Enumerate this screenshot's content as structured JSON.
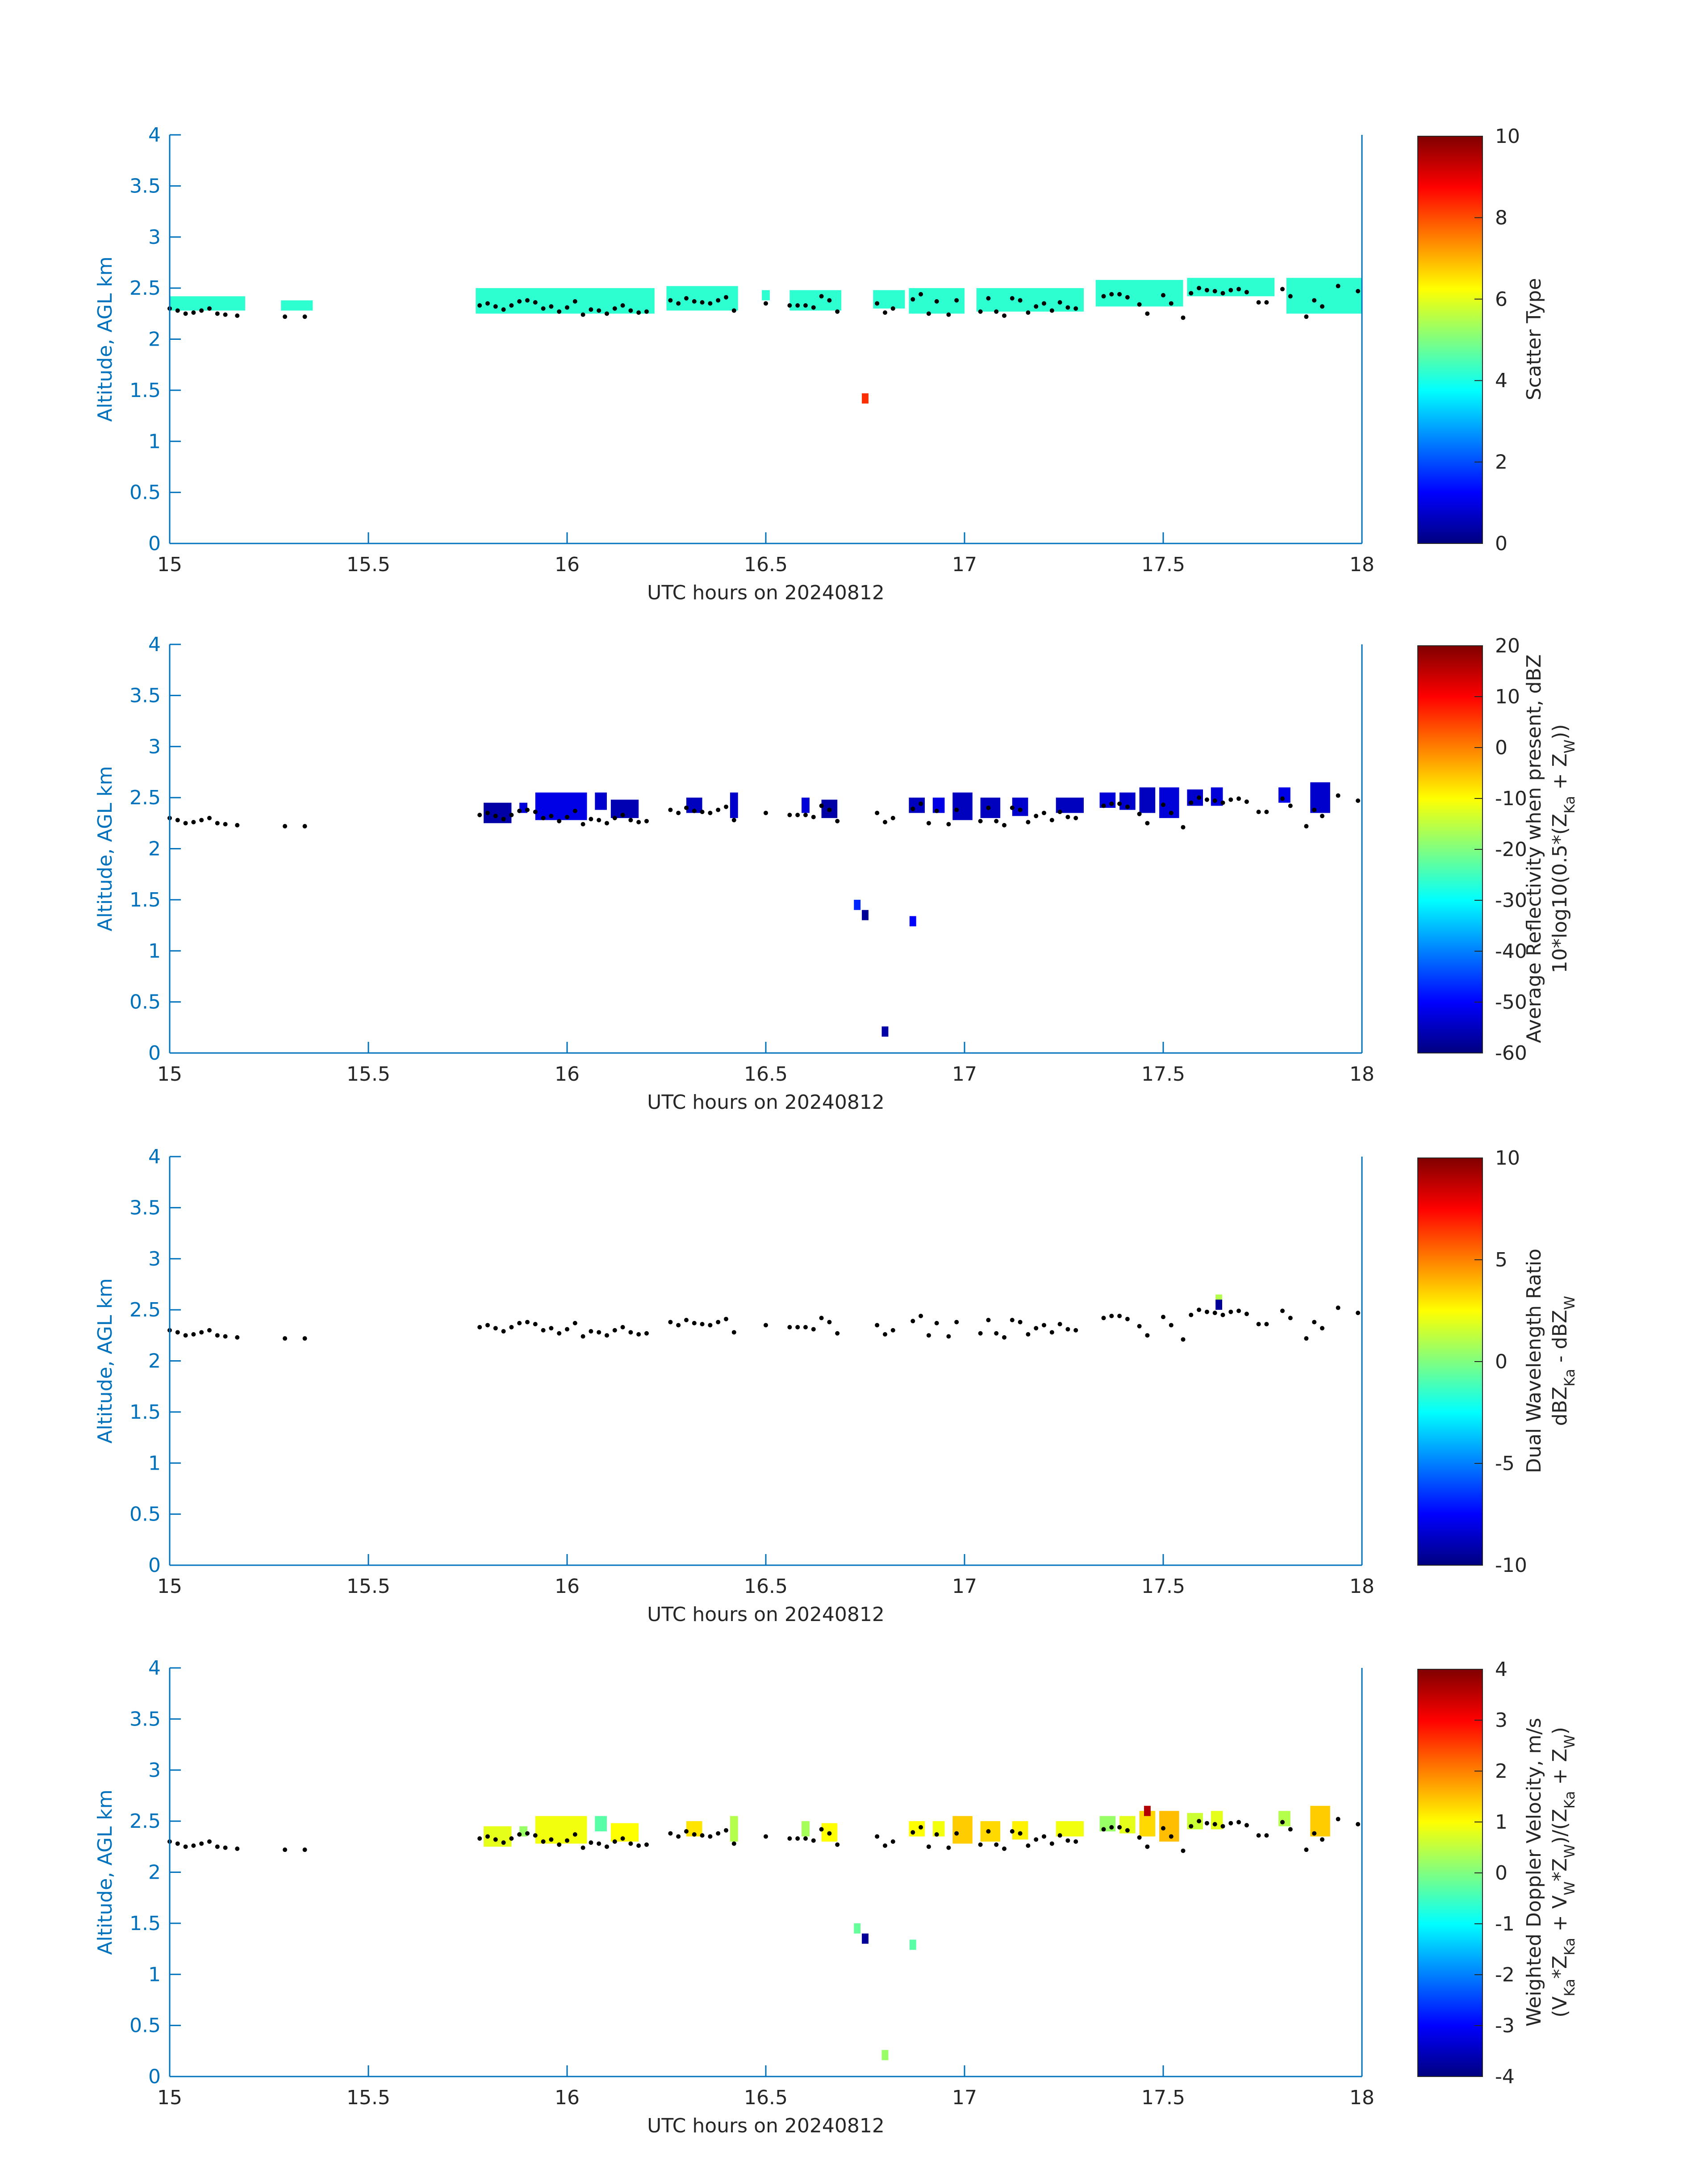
{
  "x_axis": {
    "label": "UTC hours on 20240812",
    "range": [
      15,
      18
    ],
    "ticks": [
      15,
      15.5,
      16,
      16.5,
      17,
      17.5,
      18
    ],
    "tick_labels": [
      "15",
      "15.5",
      "16",
      "16.5",
      "17",
      "17.5",
      "18"
    ]
  },
  "y_axis": {
    "label": "Altitude, AGL km",
    "range": [
      0,
      4
    ],
    "ticks": [
      0,
      0.5,
      1,
      1.5,
      2,
      2.5,
      3,
      3.5,
      4
    ],
    "tick_labels": [
      "0",
      "0.5",
      "1",
      "1.5",
      "2",
      "2.5",
      "3",
      "3.5",
      "4"
    ]
  },
  "axis_color": "#0072BD",
  "colormap": "jet",
  "cloud_base_km": {
    "hours": [
      15.0,
      15.02,
      15.04,
      15.06,
      15.08,
      15.1,
      15.12,
      15.14,
      15.17,
      15.29,
      15.34,
      15.78,
      15.8,
      15.82,
      15.84,
      15.86,
      15.88,
      15.9,
      15.92,
      15.94,
      15.96,
      15.98,
      16.0,
      16.02,
      16.04,
      16.06,
      16.08,
      16.1,
      16.12,
      16.14,
      16.16,
      16.18,
      16.2,
      16.26,
      16.28,
      16.3,
      16.32,
      16.34,
      16.36,
      16.38,
      16.4,
      16.42,
      16.5,
      16.56,
      16.58,
      16.6,
      16.62,
      16.64,
      16.66,
      16.68,
      16.78,
      16.8,
      16.82,
      16.87,
      16.89,
      16.91,
      16.93,
      16.96,
      16.98,
      17.04,
      17.06,
      17.08,
      17.1,
      17.12,
      17.14,
      17.16,
      17.18,
      17.2,
      17.22,
      17.24,
      17.26,
      17.28,
      17.35,
      17.37,
      17.39,
      17.41,
      17.44,
      17.46,
      17.5,
      17.52,
      17.55,
      17.57,
      17.59,
      17.61,
      17.63,
      17.65,
      17.67,
      17.69,
      17.71,
      17.74,
      17.76,
      17.8,
      17.82,
      17.86,
      17.88,
      17.9,
      17.94,
      17.99
    ],
    "altitudes": [
      2.3,
      2.28,
      2.25,
      2.26,
      2.28,
      2.3,
      2.25,
      2.24,
      2.23,
      2.22,
      2.22,
      2.33,
      2.35,
      2.32,
      2.29,
      2.33,
      2.37,
      2.38,
      2.36,
      2.3,
      2.32,
      2.27,
      2.31,
      2.37,
      2.24,
      2.29,
      2.28,
      2.25,
      2.3,
      2.33,
      2.28,
      2.26,
      2.27,
      2.38,
      2.35,
      2.4,
      2.37,
      2.36,
      2.35,
      2.38,
      2.41,
      2.28,
      2.35,
      2.33,
      2.33,
      2.33,
      2.31,
      2.42,
      2.38,
      2.27,
      2.35,
      2.26,
      2.3,
      2.39,
      2.44,
      2.25,
      2.37,
      2.24,
      2.38,
      2.27,
      2.4,
      2.27,
      2.23,
      2.4,
      2.38,
      2.26,
      2.32,
      2.35,
      2.28,
      2.36,
      2.31,
      2.3,
      2.42,
      2.44,
      2.44,
      2.41,
      2.34,
      2.25,
      2.43,
      2.35,
      2.21,
      2.45,
      2.5,
      2.48,
      2.47,
      2.45,
      2.48,
      2.49,
      2.46,
      2.36,
      2.36,
      2.49,
      2.42,
      2.22,
      2.38,
      2.32,
      2.52,
      2.47
    ]
  },
  "panels": [
    {
      "colorbar_label_lines": [
        "Scatter Type"
      ],
      "colorbar_ticks": [
        0,
        2,
        4,
        6,
        8,
        10
      ],
      "colorbar_tick_labels": [
        "0",
        "2",
        "4",
        "6",
        "8",
        "10"
      ],
      "chart_data": {
        "type": "heatmap",
        "x_label": "UTC hours on 20240812",
        "y_label": "Altitude, AGL km",
        "clim": [
          0,
          10
        ],
        "value_label": "Scatter Type",
        "x_range": [
          15,
          18
        ],
        "y_range": [
          0,
          4
        ],
        "cell_size": {
          "hours": 0.0167,
          "km": 0.1
        },
        "segments": [
          {
            "x": [
              15.0,
              15.19
            ],
            "z": [
              2.28,
              2.42
            ],
            "value": 4.2
          },
          {
            "x": [
              15.28,
              15.36
            ],
            "z": [
              2.28,
              2.38
            ],
            "value": 4.2
          },
          {
            "x": [
              15.77,
              16.22
            ],
            "z": [
              2.25,
              2.5
            ],
            "value": 4.2
          },
          {
            "x": [
              16.25,
              16.43
            ],
            "z": [
              2.28,
              2.52
            ],
            "value": 4.2
          },
          {
            "x": [
              16.49,
              16.51
            ],
            "z": [
              2.38,
              2.48
            ],
            "value": 4.2
          },
          {
            "x": [
              16.56,
              16.69
            ],
            "z": [
              2.28,
              2.48
            ],
            "value": 4.2
          },
          {
            "x": [
              16.77,
              16.85
            ],
            "z": [
              2.3,
              2.48
            ],
            "value": 4.2
          },
          {
            "x": [
              16.86,
              17.0
            ],
            "z": [
              2.25,
              2.5
            ],
            "value": 4.2
          },
          {
            "x": [
              17.03,
              17.3
            ],
            "z": [
              2.27,
              2.5
            ],
            "value": 4.2
          },
          {
            "x": [
              17.33,
              17.55
            ],
            "z": [
              2.32,
              2.58
            ],
            "value": 4.2
          },
          {
            "x": [
              17.56,
              17.78
            ],
            "z": [
              2.42,
              2.6
            ],
            "value": 4.2
          },
          {
            "x": [
              17.81,
              18.0
            ],
            "z": [
              2.25,
              2.6
            ],
            "value": 4.2
          }
        ],
        "points": [
          {
            "x": 16.75,
            "z": 1.42,
            "value": 8.3
          }
        ]
      }
    },
    {
      "colorbar_label_lines": [
        "Average Reflectivity when present, dBZ",
        "10*log10(0.5*(Z_Ka + Z_W))"
      ],
      "colorbar_ticks": [
        -60,
        -50,
        -40,
        -30,
        -20,
        -10,
        0,
        10,
        20
      ],
      "colorbar_tick_labels": [
        "-60",
        "-50",
        "-40",
        "-30",
        "-20",
        "-10",
        "0",
        "10",
        "20"
      ],
      "chart_data": {
        "type": "heatmap",
        "x_label": "UTC hours on 20240812",
        "y_label": "Altitude, AGL km",
        "clim": [
          -60,
          20
        ],
        "value_label": "Average Reflectivity when present, dBZ",
        "x_range": [
          15,
          18
        ],
        "y_range": [
          0,
          4
        ],
        "cell_size": {
          "hours": 0.0167,
          "km": 0.1
        },
        "segments": [
          {
            "x": [
              15.79,
              15.86
            ],
            "z": [
              2.25,
              2.45
            ],
            "value": -57
          },
          {
            "x": [
              15.88,
              15.9
            ],
            "z": [
              2.35,
              2.45
            ],
            "value": -53
          },
          {
            "x": [
              15.92,
              16.05
            ],
            "z": [
              2.28,
              2.55
            ],
            "value": -52
          },
          {
            "x": [
              16.07,
              16.1
            ],
            "z": [
              2.38,
              2.55
            ],
            "value": -54
          },
          {
            "x": [
              16.11,
              16.18
            ],
            "z": [
              2.3,
              2.48
            ],
            "value": -56
          },
          {
            "x": [
              16.3,
              16.34
            ],
            "z": [
              2.35,
              2.5
            ],
            "value": -55
          },
          {
            "x": [
              16.41,
              16.43
            ],
            "z": [
              2.3,
              2.55
            ],
            "value": -54
          },
          {
            "x": [
              16.59,
              16.61
            ],
            "z": [
              2.35,
              2.5
            ],
            "value": -53
          },
          {
            "x": [
              16.64,
              16.68
            ],
            "z": [
              2.3,
              2.48
            ],
            "value": -57
          },
          {
            "x": [
              16.86,
              16.9
            ],
            "z": [
              2.35,
              2.5
            ],
            "value": -55
          },
          {
            "x": [
              16.92,
              16.95
            ],
            "z": [
              2.35,
              2.5
            ],
            "value": -52
          },
          {
            "x": [
              16.97,
              17.02
            ],
            "z": [
              2.28,
              2.55
            ],
            "value": -55
          },
          {
            "x": [
              17.04,
              17.09
            ],
            "z": [
              2.3,
              2.5
            ],
            "value": -55
          },
          {
            "x": [
              17.12,
              17.16
            ],
            "z": [
              2.32,
              2.5
            ],
            "value": -54
          },
          {
            "x": [
              17.23,
              17.3
            ],
            "z": [
              2.35,
              2.5
            ],
            "value": -55
          },
          {
            "x": [
              17.34,
              17.38
            ],
            "z": [
              2.4,
              2.55
            ],
            "value": -53
          },
          {
            "x": [
              17.39,
              17.43
            ],
            "z": [
              2.38,
              2.55
            ],
            "value": -54
          },
          {
            "x": [
              17.44,
              17.48
            ],
            "z": [
              2.35,
              2.6
            ],
            "value": -55
          },
          {
            "x": [
              17.49,
              17.54
            ],
            "z": [
              2.3,
              2.6
            ],
            "value": -53
          },
          {
            "x": [
              17.56,
              17.6
            ],
            "z": [
              2.42,
              2.58
            ],
            "value": -54
          },
          {
            "x": [
              17.62,
              17.65
            ],
            "z": [
              2.42,
              2.6
            ],
            "value": -53
          },
          {
            "x": [
              17.79,
              17.82
            ],
            "z": [
              2.45,
              2.6
            ],
            "value": -52
          },
          {
            "x": [
              17.87,
              17.92
            ],
            "z": [
              2.35,
              2.65
            ],
            "value": -54
          }
        ],
        "points": [
          {
            "x": 16.73,
            "z": 1.45,
            "value": -47
          },
          {
            "x": 16.75,
            "z": 1.35,
            "value": -58
          },
          {
            "x": 16.87,
            "z": 1.29,
            "value": -50
          },
          {
            "x": 16.8,
            "z": 0.21,
            "value": -57
          }
        ]
      }
    },
    {
      "colorbar_label_lines": [
        "Dual Wavelength Ratio",
        "dBZ_Ka - dBZ_W"
      ],
      "colorbar_ticks": [
        -10,
        -5,
        0,
        5,
        10
      ],
      "colorbar_tick_labels": [
        "-10",
        "-5",
        "0",
        "5",
        "10"
      ],
      "chart_data": {
        "type": "heatmap",
        "x_label": "UTC hours on 20240812",
        "y_label": "Altitude, AGL km",
        "clim": [
          -10,
          10
        ],
        "value_label": "Dual Wavelength Ratio",
        "x_range": [
          15,
          18
        ],
        "y_range": [
          0,
          4
        ],
        "cell_size": {
          "hours": 0.0167,
          "km": 0.1
        },
        "segments": [],
        "points": [
          {
            "x": 17.64,
            "z": 2.6,
            "value": 1
          },
          {
            "x": 17.64,
            "z": 2.55,
            "value": -9.5
          }
        ]
      }
    },
    {
      "colorbar_label_lines": [
        "Weighted Doppler Velocity, m/s",
        "(V_Ka*Z_Ka + V_W*Z_W)/(Z_Ka + Z_W)"
      ],
      "colorbar_ticks": [
        -4,
        -3,
        -2,
        -1,
        0,
        1,
        2,
        3,
        4
      ],
      "colorbar_tick_labels": [
        "-4",
        "-3",
        "-2",
        "-1",
        "0",
        "1",
        "2",
        "3",
        "4"
      ],
      "chart_data": {
        "type": "heatmap",
        "x_label": "UTC hours on 20240812",
        "y_label": "Altitude, AGL km",
        "clim": [
          -4,
          4
        ],
        "value_label": "Weighted Doppler Velocity, m/s",
        "x_range": [
          15,
          18
        ],
        "y_range": [
          0,
          4
        ],
        "cell_size": {
          "hours": 0.0167,
          "km": 0.1
        },
        "segments": [
          {
            "x": [
              15.79,
              15.86
            ],
            "z": [
              2.25,
              2.45
            ],
            "value": 0.8
          },
          {
            "x": [
              15.88,
              15.9
            ],
            "z": [
              2.35,
              2.45
            ],
            "value": 0.2
          },
          {
            "x": [
              15.92,
              16.05
            ],
            "z": [
              2.28,
              2.55
            ],
            "value": 0.9
          },
          {
            "x": [
              16.07,
              16.1
            ],
            "z": [
              2.4,
              2.55
            ],
            "value": -0.3
          },
          {
            "x": [
              16.11,
              16.18
            ],
            "z": [
              2.3,
              2.48
            ],
            "value": 1.0
          },
          {
            "x": [
              16.3,
              16.34
            ],
            "z": [
              2.35,
              2.5
            ],
            "value": 1.2
          },
          {
            "x": [
              16.41,
              16.43
            ],
            "z": [
              2.3,
              2.55
            ],
            "value": 0.4
          },
          {
            "x": [
              16.59,
              16.61
            ],
            "z": [
              2.35,
              2.5
            ],
            "value": 0.3
          },
          {
            "x": [
              16.64,
              16.68
            ],
            "z": [
              2.3,
              2.48
            ],
            "value": 1.0
          },
          {
            "x": [
              16.86,
              16.9
            ],
            "z": [
              2.35,
              2.5
            ],
            "value": 1.0
          },
          {
            "x": [
              16.92,
              16.95
            ],
            "z": [
              2.35,
              2.5
            ],
            "value": 0.9
          },
          {
            "x": [
              16.97,
              17.02
            ],
            "z": [
              2.28,
              2.55
            ],
            "value": 1.4
          },
          {
            "x": [
              17.04,
              17.09
            ],
            "z": [
              2.3,
              2.5
            ],
            "value": 1.3
          },
          {
            "x": [
              17.12,
              17.16
            ],
            "z": [
              2.32,
              2.5
            ],
            "value": 1.1
          },
          {
            "x": [
              17.23,
              17.3
            ],
            "z": [
              2.35,
              2.5
            ],
            "value": 0.9
          },
          {
            "x": [
              17.34,
              17.38
            ],
            "z": [
              2.4,
              2.55
            ],
            "value": 0.2
          },
          {
            "x": [
              17.39,
              17.43
            ],
            "z": [
              2.38,
              2.55
            ],
            "value": 0.8
          },
          {
            "x": [
              17.44,
              17.48
            ],
            "z": [
              2.35,
              2.6
            ],
            "value": 1.3
          },
          {
            "x": [
              17.49,
              17.54
            ],
            "z": [
              2.3,
              2.6
            ],
            "value": 1.5
          },
          {
            "x": [
              17.56,
              17.6
            ],
            "z": [
              2.42,
              2.58
            ],
            "value": 0.6
          },
          {
            "x": [
              17.62,
              17.65
            ],
            "z": [
              2.42,
              2.6
            ],
            "value": 0.8
          },
          {
            "x": [
              17.79,
              17.82
            ],
            "z": [
              2.45,
              2.6
            ],
            "value": 0.4
          },
          {
            "x": [
              17.87,
              17.92
            ],
            "z": [
              2.35,
              2.65
            ],
            "value": 1.4
          }
        ],
        "points": [
          {
            "x": 16.73,
            "z": 1.45,
            "value": -0.2
          },
          {
            "x": 16.75,
            "z": 1.35,
            "value": -3.8
          },
          {
            "x": 16.87,
            "z": 1.29,
            "value": -0.3
          },
          {
            "x": 16.8,
            "z": 0.21,
            "value": 0.2
          },
          {
            "x": 17.46,
            "z": 2.6,
            "value": 3.6
          }
        ]
      }
    }
  ]
}
